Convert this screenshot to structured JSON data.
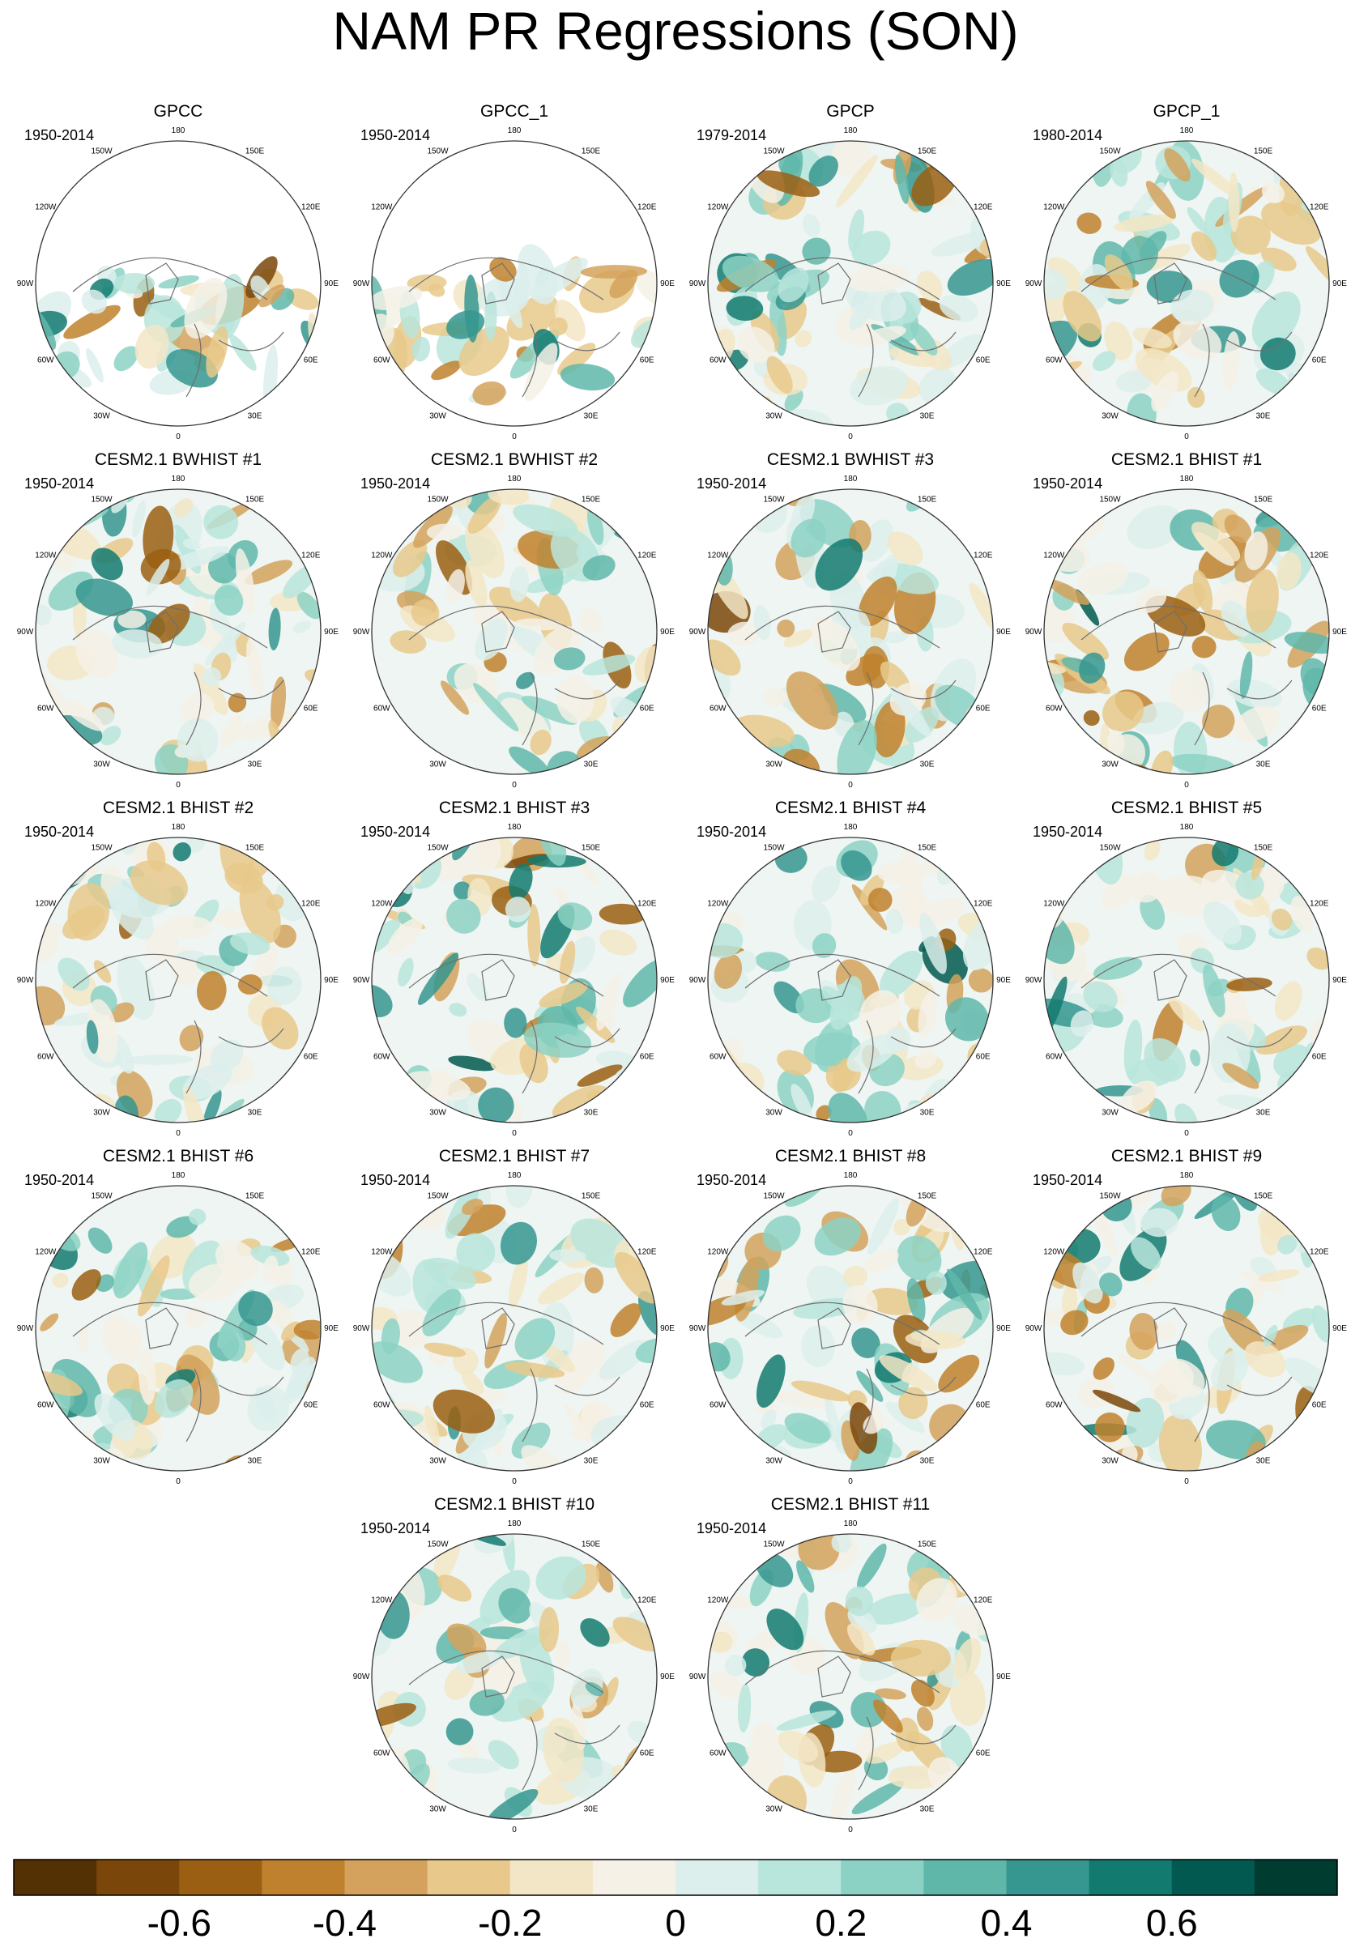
{
  "title": "NAM PR Regressions (SON)",
  "chart_data": {
    "type": "heatmap",
    "projection": "north-polar-stereographic",
    "variable": "PR",
    "season": "SON",
    "longitude_labels": [
      "180",
      "150E",
      "120E",
      "90E",
      "60E",
      "30E",
      "0",
      "30W",
      "60W",
      "90W",
      "120W",
      "150W"
    ],
    "colorbar": {
      "levels": [
        -0.7,
        -0.6,
        -0.5,
        -0.4,
        -0.3,
        -0.2,
        -0.1,
        0,
        0.1,
        0.2,
        0.3,
        0.4,
        0.5,
        0.6,
        0.7
      ],
      "colors": [
        "#543005",
        "#7a4609",
        "#9a5f12",
        "#bf812d",
        "#d4a25c",
        "#e8c98b",
        "#f3e6c6",
        "#f5f1e6",
        "#dcefec",
        "#b8e5dc",
        "#8cd2c4",
        "#5fb7aa",
        "#35978f",
        "#137a70",
        "#01594f",
        "#003c30"
      ],
      "tick_labels": [
        "-0.6",
        "-0.4",
        "-0.2",
        "0",
        "0.2",
        "0.4",
        "0.6"
      ],
      "tick_values": [
        -0.6,
        -0.4,
        -0.2,
        0,
        0.2,
        0.4,
        0.6
      ]
    },
    "panels": [
      {
        "title": "GPCC",
        "years": "1950-2014",
        "masked": true
      },
      {
        "title": "GPCC_1",
        "years": "1950-2014",
        "masked": true
      },
      {
        "title": "GPCP",
        "years": "1979-2014",
        "masked": false
      },
      {
        "title": "GPCP_1",
        "years": "1980-2014",
        "masked": false
      },
      {
        "title": "CESM2.1 BWHIST #1",
        "years": "1950-2014",
        "masked": false
      },
      {
        "title": "CESM2.1 BWHIST #2",
        "years": "1950-2014",
        "masked": false
      },
      {
        "title": "CESM2.1 BWHIST #3",
        "years": "1950-2014",
        "masked": false
      },
      {
        "title": "CESM2.1 BHIST #1",
        "years": "1950-2014",
        "masked": false
      },
      {
        "title": "CESM2.1 BHIST #2",
        "years": "1950-2014",
        "masked": false
      },
      {
        "title": "CESM2.1 BHIST #3",
        "years": "1950-2014",
        "masked": false
      },
      {
        "title": "CESM2.1 BHIST #4",
        "years": "1950-2014",
        "masked": false
      },
      {
        "title": "CESM2.1 BHIST #5",
        "years": "1950-2014",
        "masked": false
      },
      {
        "title": "CESM2.1 BHIST #6",
        "years": "1950-2014",
        "masked": false
      },
      {
        "title": "CESM2.1 BHIST #7",
        "years": "1950-2014",
        "masked": false
      },
      {
        "title": "CESM2.1 BHIST #8",
        "years": "1950-2014",
        "masked": false
      },
      {
        "title": "CESM2.1 BHIST #9",
        "years": "1950-2014",
        "masked": false
      },
      {
        "title": "CESM2.1 BHIST #10",
        "years": "1950-2014",
        "masked": false
      },
      {
        "title": "CESM2.1 BHIST #11",
        "years": "1950-2014",
        "masked": false
      }
    ]
  }
}
